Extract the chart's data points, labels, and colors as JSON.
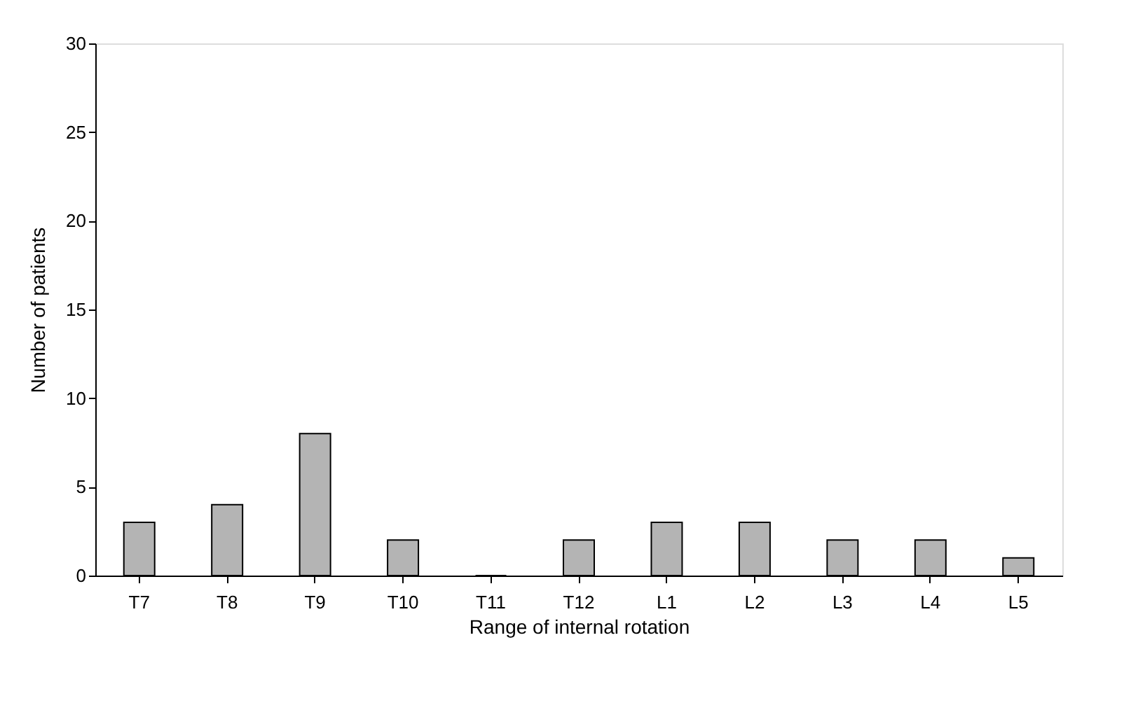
{
  "chart_data": {
    "type": "bar",
    "xlabel": "Range of internal rotation",
    "ylabel": "Number of patients",
    "categories": [
      "T7",
      "T8",
      "T9",
      "T10",
      "T11",
      "T12",
      "L1",
      "L2",
      "L3",
      "L4",
      "L5"
    ],
    "values": [
      3,
      4,
      8,
      2,
      0,
      2,
      3,
      3,
      2,
      2,
      1
    ],
    "color": "#b4b4b4",
    "ylim": [
      0,
      30
    ],
    "yticks": [
      0,
      5,
      10,
      15,
      20,
      25,
      30
    ],
    "grid": false
  }
}
